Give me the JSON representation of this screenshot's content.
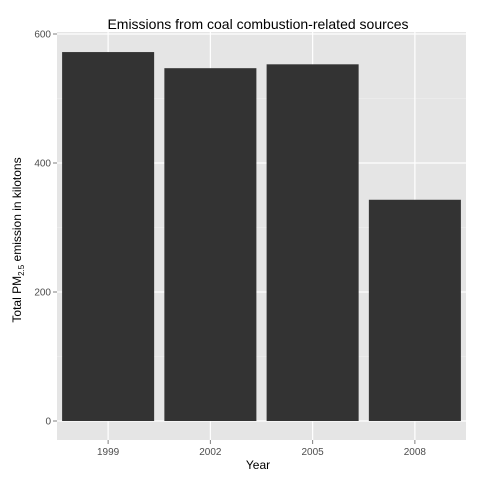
{
  "chart_data": {
    "type": "bar",
    "title": "Emissions from coal combustion-related sources",
    "xlabel": "Year",
    "ylabel": {
      "prefix": "Total PM",
      "subscript": "2.5",
      "suffix": " emission in kilotons"
    },
    "categories": [
      "1999",
      "2002",
      "2005",
      "2008"
    ],
    "values": [
      572,
      547,
      553,
      343
    ],
    "ylim": [
      0,
      600
    ],
    "yticks": [
      0,
      200,
      400,
      600
    ],
    "grid": true,
    "legend": "none",
    "colors": {
      "bar": "#333333",
      "panel": "#e5e5e5",
      "grid_major": "#ffffff",
      "grid_minor": "#f2f2f2",
      "tick_text": "#4d4d4d"
    }
  }
}
